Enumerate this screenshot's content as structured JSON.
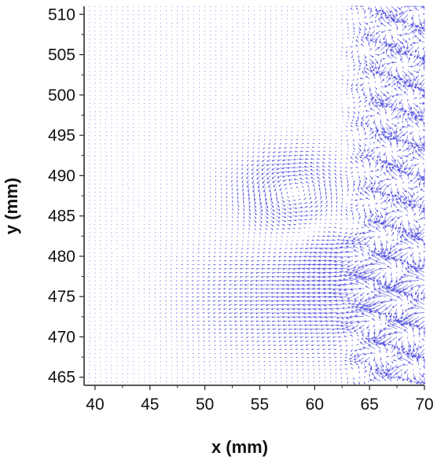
{
  "chart_data": {
    "type": "quiver",
    "xlabel": "x (mm)",
    "ylabel": "y (mm)",
    "xlim": [
      39,
      70
    ],
    "ylim": [
      464,
      511
    ],
    "xticks": [
      40,
      45,
      50,
      55,
      60,
      65,
      70
    ],
    "yticks": [
      465,
      470,
      475,
      480,
      485,
      490,
      495,
      500,
      505,
      510
    ],
    "grid": false,
    "legend": "none",
    "arrow_color": "#1f1fd6",
    "vector_field": {
      "x_range": [
        39.5,
        70
      ],
      "y_range": [
        464.5,
        511
      ],
      "spacing_mm": 0.5,
      "flow_pattern": "weak downward vectors for x<60; horizontal leftward flow band y 465-484 in x 44-62; small vortex centered near x=58, y=488; dense strong wavy vectors for x>64"
    }
  }
}
